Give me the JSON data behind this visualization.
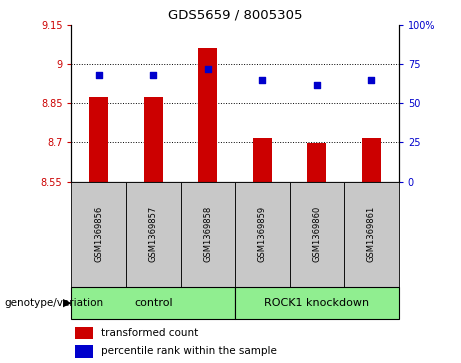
{
  "title": "GDS5659 / 8005305",
  "samples": [
    "GSM1369856",
    "GSM1369857",
    "GSM1369858",
    "GSM1369859",
    "GSM1369860",
    "GSM1369861"
  ],
  "bar_values": [
    8.873,
    8.873,
    9.063,
    8.718,
    8.698,
    8.718
  ],
  "percentile_values": [
    68,
    68,
    72,
    65,
    62,
    65
  ],
  "ylim_left": [
    8.55,
    9.15
  ],
  "ylim_right": [
    0,
    100
  ],
  "yticks_left": [
    8.55,
    8.7,
    8.85,
    9.0,
    9.15
  ],
  "yticks_right": [
    0,
    25,
    50,
    75,
    100
  ],
  "ytick_labels_left": [
    "8.55",
    "8.7",
    "8.85",
    "9",
    "9.15"
  ],
  "ytick_labels_right": [
    "0",
    "25",
    "50",
    "75",
    "100%"
  ],
  "bar_color": "#cc0000",
  "dot_color": "#0000cc",
  "control_color": "#90ee90",
  "knockdown_color": "#90ee90",
  "control_label": "control",
  "knockdown_label": "ROCK1 knockdown",
  "xlabel_section": "genotype/variation",
  "legend_bar": "transformed count",
  "legend_dot": "percentile rank within the sample",
  "dotted_grid_values": [
    8.7,
    8.85,
    9.0
  ],
  "bar_baseline": 8.55,
  "gray_color": "#c8c8c8"
}
